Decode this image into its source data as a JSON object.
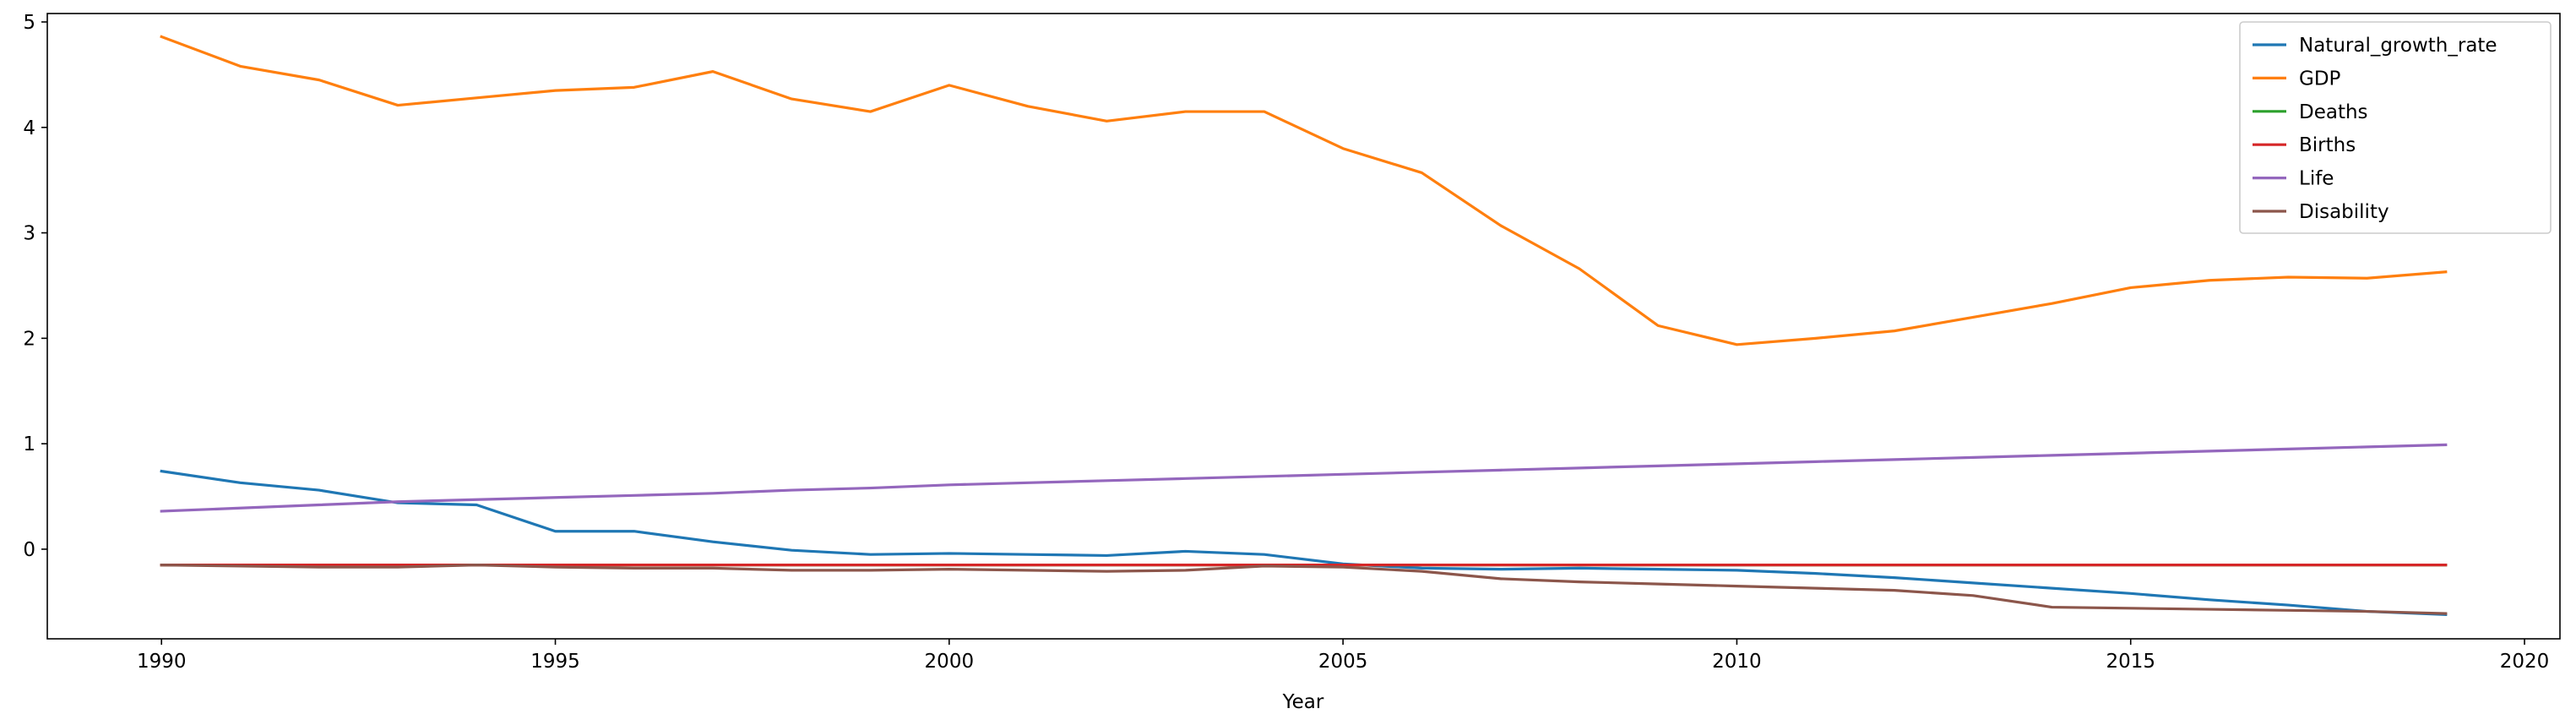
{
  "chart_data": {
    "type": "line",
    "title": "",
    "xlabel": "Year",
    "ylabel": "",
    "xlim": [
      1988.55,
      2020.45
    ],
    "ylim": [
      -0.85,
      5.08
    ],
    "xticks": [
      1990,
      1995,
      2000,
      2005,
      2010,
      2015,
      2020
    ],
    "yticks": [
      0,
      1,
      2,
      3,
      4,
      5
    ],
    "grid": false,
    "legend_position": "top-right",
    "x": [
      1990,
      1991,
      1992,
      1993,
      1994,
      1995,
      1996,
      1997,
      1998,
      1999,
      2000,
      2001,
      2002,
      2003,
      2004,
      2005,
      2006,
      2007,
      2008,
      2009,
      2010,
      2011,
      2012,
      2013,
      2014,
      2015,
      2016,
      2017,
      2018,
      2019
    ],
    "series": [
      {
        "name": "Natural_growth_rate",
        "color": "#1f77b4",
        "values": [
          0.74,
          0.63,
          0.56,
          0.44,
          0.42,
          0.17,
          0.17,
          0.07,
          -0.01,
          -0.05,
          -0.04,
          -0.05,
          -0.06,
          -0.02,
          -0.05,
          -0.14,
          -0.18,
          -0.19,
          -0.18,
          -0.19,
          -0.2,
          -0.23,
          -0.27,
          -0.32,
          -0.37,
          -0.42,
          -0.48,
          -0.53,
          -0.59,
          -0.62
        ]
      },
      {
        "name": "GDP",
        "color": "#ff7f0e",
        "values": [
          4.86,
          4.58,
          4.45,
          4.21,
          4.28,
          4.35,
          4.38,
          4.53,
          4.27,
          4.15,
          4.4,
          4.2,
          4.06,
          4.15,
          4.15,
          3.8,
          3.57,
          3.07,
          2.66,
          2.12,
          1.94,
          2.0,
          2.07,
          2.2,
          2.33,
          2.48,
          2.55,
          2.58,
          2.57,
          2.63
        ]
      },
      {
        "name": "Deaths",
        "color": "#2ca02c",
        "values": [
          -0.15,
          -0.15,
          -0.15,
          -0.15,
          -0.15,
          -0.15,
          -0.15,
          -0.15,
          -0.15,
          -0.15,
          -0.15,
          -0.15,
          -0.15,
          -0.15,
          -0.15,
          -0.15,
          -0.15,
          -0.15,
          -0.15,
          -0.15,
          -0.15,
          -0.15,
          -0.15,
          -0.15,
          -0.15,
          -0.15,
          -0.15,
          -0.15,
          -0.15,
          -0.15
        ]
      },
      {
        "name": "Births",
        "color": "#d62728",
        "values": [
          -0.15,
          -0.15,
          -0.15,
          -0.15,
          -0.15,
          -0.15,
          -0.15,
          -0.15,
          -0.15,
          -0.15,
          -0.15,
          -0.15,
          -0.15,
          -0.15,
          -0.15,
          -0.15,
          -0.15,
          -0.15,
          -0.15,
          -0.15,
          -0.15,
          -0.15,
          -0.15,
          -0.15,
          -0.15,
          -0.15,
          -0.15,
          -0.15,
          -0.15,
          -0.15
        ]
      },
      {
        "name": "Life",
        "color": "#9467bd",
        "values": [
          0.36,
          0.39,
          0.42,
          0.45,
          0.47,
          0.49,
          0.51,
          0.53,
          0.56,
          0.58,
          0.61,
          0.63,
          0.65,
          0.67,
          0.69,
          0.71,
          0.73,
          0.75,
          0.77,
          0.79,
          0.81,
          0.83,
          0.85,
          0.87,
          0.89,
          0.91,
          0.93,
          0.95,
          0.97,
          0.99
        ]
      },
      {
        "name": "Disability",
        "color": "#8c564b",
        "values": [
          -0.15,
          -0.16,
          -0.17,
          -0.17,
          -0.15,
          -0.17,
          -0.18,
          -0.18,
          -0.2,
          -0.2,
          -0.19,
          -0.2,
          -0.21,
          -0.2,
          -0.16,
          -0.17,
          -0.21,
          -0.28,
          -0.31,
          -0.33,
          -0.35,
          -0.37,
          -0.39,
          -0.44,
          -0.55,
          -0.56,
          -0.57,
          -0.58,
          -0.59,
          -0.61
        ]
      }
    ]
  }
}
